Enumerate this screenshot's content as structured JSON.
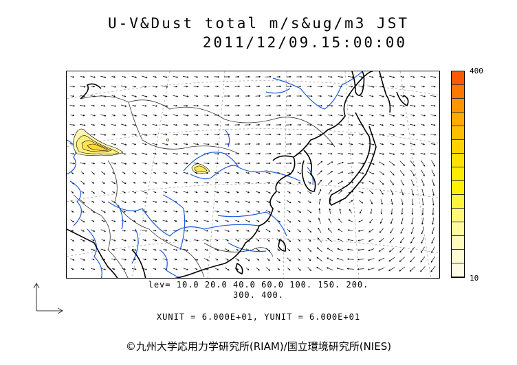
{
  "title": {
    "line1": "U-V&Dust total m/s&ug/m3 JST",
    "line2": "2011/12/09.15:00:00"
  },
  "colorbar": {
    "max_label": "400",
    "min_label": "10",
    "colors": [
      "#ff5a00",
      "#ff7800",
      "#ff9600",
      "#ffaa00",
      "#ffbe00",
      "#ffd200",
      "#ffe100",
      "#ffeb00",
      "#fff000",
      "#fff53c",
      "#fff878",
      "#fffaa0",
      "#fffbbe",
      "#fffcd2",
      "#fffde6"
    ]
  },
  "contour_levels": {
    "line1": "lev= 10.0 20.0 40.0 60.0 100. 150. 200.",
    "line2": "300. 400."
  },
  "units": "XUNIT = 6.000E+01, YUNIT = 6.000E+01",
  "copyright": "©九州大学応用力学研究所(RIAM)/国立環境研究所(NIES)",
  "colors": {
    "coastline": "#000000",
    "rivers": "#1e5adc",
    "borders": "#333333",
    "graticule": "#9a9a9a",
    "vectors": "#000000"
  }
}
